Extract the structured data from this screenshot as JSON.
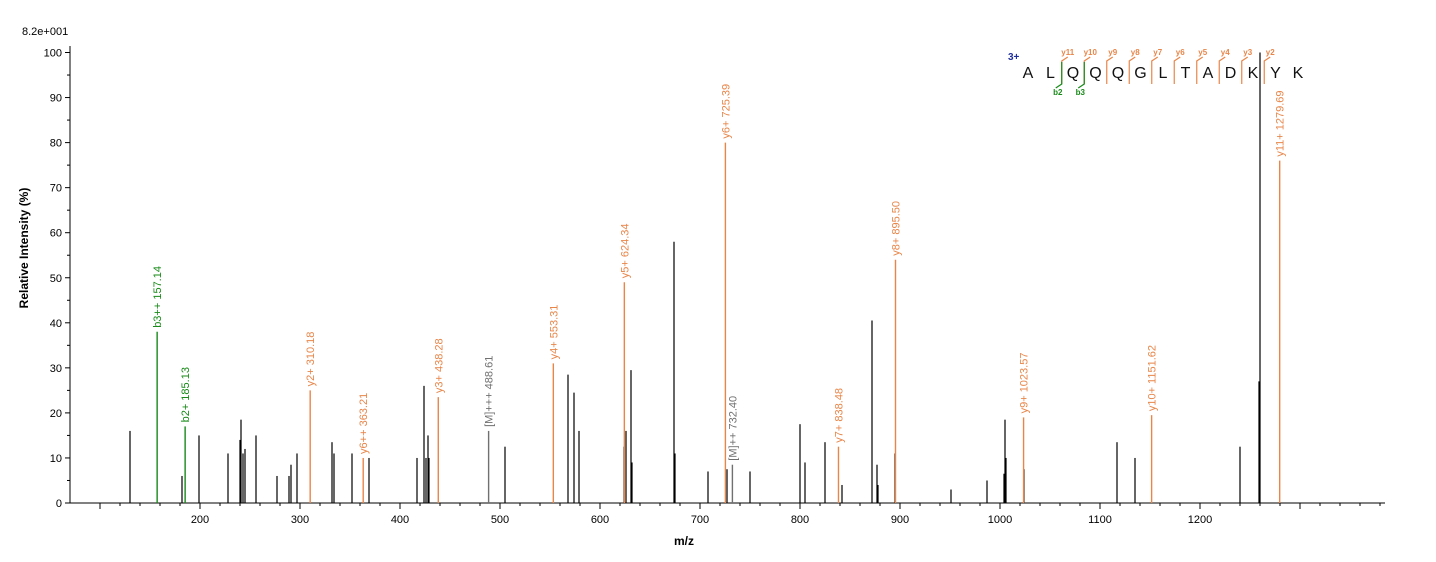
{
  "colors": {
    "y": "#e8864a",
    "b": "#188a18",
    "m": "#707070",
    "unassigned": "#000000"
  },
  "chart_data": {
    "type": "spectrum",
    "max_intensity_label": "8.2e+001",
    "xlabel": "m/z",
    "ylabel": "Relative   Intensity (%)",
    "xlim": [
      70,
      1385
    ],
    "ylim": [
      0,
      101
    ],
    "x_ticks": [
      200,
      300,
      400,
      500,
      600,
      700,
      800,
      900,
      1000,
      1100,
      1200
    ],
    "y_ticks": [
      0,
      10,
      20,
      30,
      40,
      50,
      60,
      70,
      80,
      90,
      100
    ],
    "peaks_unassigned": [
      [
        130,
        16
      ],
      [
        182,
        6
      ],
      [
        199,
        15
      ],
      [
        228,
        11
      ],
      [
        240,
        14
      ],
      [
        241,
        18.5
      ],
      [
        243,
        11
      ],
      [
        245,
        12
      ],
      [
        256,
        15
      ],
      [
        277,
        6
      ],
      [
        289,
        6
      ],
      [
        291,
        8.5
      ],
      [
        297,
        11
      ],
      [
        332,
        13.5
      ],
      [
        334,
        11
      ],
      [
        352,
        11
      ],
      [
        369,
        10
      ],
      [
        417,
        10
      ],
      [
        424,
        26
      ],
      [
        426,
        10
      ],
      [
        428,
        15
      ],
      [
        429,
        10
      ],
      [
        505,
        12.5
      ],
      [
        568,
        28.5
      ],
      [
        574,
        24.5
      ],
      [
        579,
        16
      ],
      [
        624,
        12.5
      ],
      [
        626,
        16
      ],
      [
        631,
        29.5
      ],
      [
        632,
        9
      ],
      [
        674,
        58
      ],
      [
        675,
        11
      ],
      [
        708,
        7
      ],
      [
        727,
        7.5
      ],
      [
        750,
        7
      ],
      [
        800,
        17.5
      ],
      [
        805,
        9
      ],
      [
        825,
        13.5
      ],
      [
        842,
        4
      ],
      [
        872,
        40.5
      ],
      [
        877,
        8.5
      ],
      [
        878,
        4
      ],
      [
        895,
        11
      ],
      [
        951,
        3
      ],
      [
        987,
        5
      ],
      [
        1004,
        6.5
      ],
      [
        1005,
        18.5
      ],
      [
        1006,
        10
      ],
      [
        1024,
        7.5
      ],
      [
        1117,
        13.5
      ],
      [
        1135,
        10
      ],
      [
        1240,
        12.5
      ],
      [
        1259,
        27
      ],
      [
        1260,
        100
      ]
    ],
    "peaks_labeled": [
      {
        "mz": 157.14,
        "intensity": 38,
        "ion": "b",
        "label": "b3++ 157.14"
      },
      {
        "mz": 185.13,
        "intensity": 17,
        "ion": "b",
        "label": "b2+ 185.13"
      },
      {
        "mz": 310.18,
        "intensity": 25,
        "ion": "y",
        "label": "y2+ 310.18"
      },
      {
        "mz": 363.21,
        "intensity": 10,
        "ion": "y",
        "label": "y6++ 363.21"
      },
      {
        "mz": 438.28,
        "intensity": 23.5,
        "ion": "y",
        "label": "y3+ 438.28"
      },
      {
        "mz": 488.61,
        "intensity": 16,
        "ion": "m",
        "label": "[M]+++ 488.61"
      },
      {
        "mz": 553.31,
        "intensity": 31,
        "ion": "y",
        "label": "y4+ 553.31"
      },
      {
        "mz": 624.34,
        "intensity": 49,
        "ion": "y",
        "label": "y5+ 624.34"
      },
      {
        "mz": 725.39,
        "intensity": 80,
        "ion": "y",
        "label": "y6+ 725.39"
      },
      {
        "mz": 732.4,
        "intensity": 8.5,
        "ion": "m",
        "label": "[M]++ 732.40"
      },
      {
        "mz": 838.48,
        "intensity": 12.5,
        "ion": "y",
        "label": "y7+ 838.48"
      },
      {
        "mz": 895.5,
        "intensity": 54,
        "ion": "y",
        "label": "y8+ 895.50"
      },
      {
        "mz": 1023.57,
        "intensity": 19,
        "ion": "y",
        "label": "y9+ 1023.57"
      },
      {
        "mz": 1151.62,
        "intensity": 19.5,
        "ion": "y",
        "label": "y10+ 1151.62"
      },
      {
        "mz": 1279.69,
        "intensity": 76,
        "ion": "y",
        "label": "y11+ 1279.69"
      }
    ],
    "sequence": {
      "charge": "3+",
      "residues": [
        "A",
        "L",
        "Q",
        "Q",
        "Q",
        "G",
        "L",
        "T",
        "A",
        "D",
        "K",
        "Y",
        "K"
      ],
      "y_ions": [
        {
          "after": 2,
          "label": "y11"
        },
        {
          "after": 3,
          "label": "y10"
        },
        {
          "after": 4,
          "label": "y9"
        },
        {
          "after": 5,
          "label": "y8"
        },
        {
          "after": 6,
          "label": "y7"
        },
        {
          "after": 7,
          "label": "y6"
        },
        {
          "after": 8,
          "label": "y5"
        },
        {
          "after": 9,
          "label": "y4"
        },
        {
          "after": 10,
          "label": "y3"
        },
        {
          "after": 11,
          "label": "y2"
        }
      ],
      "b_ions": [
        {
          "after": 2,
          "label": "b2"
        },
        {
          "after": 3,
          "label": "b3"
        }
      ]
    }
  }
}
